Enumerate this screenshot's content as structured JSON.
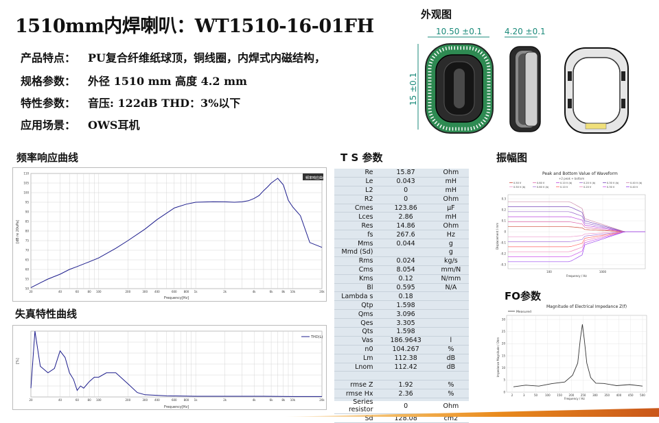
{
  "title": "1510mm内焊喇叭：WT1510-16-01FH",
  "specs": [
    {
      "key": "产品特点：",
      "value": "PU复合纤维纸球顶，铜线圈，内焊式内磁结构，"
    },
    {
      "key": "规格参数：",
      "value": "外径 1510 mm   高度 4.2 mm"
    },
    {
      "key": "特性参数：",
      "value": "音压: 122dB   THD：3%以下"
    },
    {
      "key": "应用场景：",
      "value": "OWS耳机"
    }
  ],
  "sections": {
    "appearance": "外观图",
    "freq_response": "频率响应曲线",
    "ts_params": "T S 参数",
    "amplitude": "振幅图",
    "distortion": "失真特性曲线",
    "fo_params": "FO参数"
  },
  "drawing": {
    "dim_width": "10.50 ±0.1",
    "dim_height": "15 ±0.1",
    "dim_depth": "4.20 ±0.1"
  },
  "freq_chart": {
    "legend": "频率响应曲线",
    "ylabel": "[dB re 20uPa]",
    "xlabel": "Frequency[Hz]",
    "y_ticks": [
      "110",
      "105",
      "100",
      "95",
      "90",
      "85",
      "80",
      "75",
      "70",
      "65",
      "60",
      "55",
      "50"
    ],
    "x_ticks": [
      "20",
      "40",
      "60",
      "80",
      "100",
      "200",
      "300",
      "400",
      "600",
      "800",
      "1k",
      "2k",
      "4k",
      "6k",
      "8k",
      "10k",
      "20k"
    ]
  },
  "dist_chart": {
    "legend": "THD(L)",
    "ylabel": "[%]",
    "xlabel": "Frequency[Hz]",
    "x_ticks": [
      "20",
      "40",
      "60",
      "80",
      "100",
      "200",
      "300",
      "400",
      "600",
      "800",
      "1k",
      "2k",
      "4k",
      "6k",
      "8k",
      "10k",
      "20k"
    ]
  },
  "amp_chart": {
    "title": "Peak and Bottom Value of Waveform",
    "subtitle": "+2 peak + bottom",
    "legend": [
      "0.50 V",
      "0.60 V",
      "0.10 V (b)",
      "0.20 V (b)",
      "0.30 V (b)",
      "0.40 V (b)",
      "0.50 V (b)",
      "0.60 V (b)",
      "0.10 V",
      "0.20 V",
      "0.30 V",
      "0.40 V"
    ],
    "ylabel": "Displacement / mm",
    "xlabel": "Frequency / Hz",
    "y_ticks": [
      "0.3",
      "0.2",
      "0.1",
      "0",
      "-0.1",
      "-0.2",
      "-0.3"
    ],
    "x_ticks": [
      "100",
      "1000"
    ]
  },
  "fo_chart": {
    "title": "Magnitude of Electrical Impedance Z(f)",
    "legend": "Measured",
    "ylabel": "Impedance Magnitude / Ohm",
    "xlabel": "Frequency / Hz",
    "y_ticks": [
      "30",
      "25",
      "20",
      "15",
      "10",
      "5",
      "0"
    ],
    "x_ticks": [
      "2",
      "3",
      "50",
      "100",
      "150",
      "200",
      "250",
      "300",
      "350",
      "400",
      "450",
      "500"
    ]
  },
  "ts_table": [
    [
      "Re",
      "15.87",
      "Ohm"
    ],
    [
      "Le",
      "0.043",
      "mH"
    ],
    [
      "L2",
      "0",
      "mH"
    ],
    [
      "R2",
      "0",
      "Ohm"
    ],
    [
      "Cmes",
      "123.86",
      "µF"
    ],
    [
      "Lces",
      "2.86",
      "mH"
    ],
    [
      "Res",
      "14.86",
      "Ohm"
    ],
    [
      "fs",
      "267.6",
      "Hz"
    ],
    [
      "Mms",
      "0.044",
      "g"
    ],
    [
      "Mmd (Sd)",
      "",
      "g"
    ],
    [
      "Rms",
      "0.024",
      "kg/s"
    ],
    [
      "Cms",
      "8.054",
      "mm/N"
    ],
    [
      "Kms",
      "0.12",
      "N/mm"
    ],
    [
      "Bl",
      "0.595",
      "N/A"
    ],
    [
      "Lambda s",
      "0.18",
      ""
    ],
    [
      "Qtp",
      "1.598",
      ""
    ],
    [
      "Qms",
      "3.096",
      ""
    ],
    [
      "Qes",
      "3.305",
      ""
    ],
    [
      "Qts",
      "1.598",
      ""
    ],
    [
      "Vas",
      "186.9643",
      "l"
    ],
    [
      "n0",
      "104.267",
      "%"
    ],
    [
      "Lm",
      "112.38",
      "dB"
    ],
    [
      "Lnom",
      "112.42",
      "dB"
    ],
    [
      "",
      "",
      ""
    ],
    [
      "rmse Z",
      "1.92",
      "%"
    ],
    [
      "rmse Hx",
      "2.36",
      "%"
    ],
    [
      "Series resistor",
      "0",
      "Ohm"
    ],
    [
      "Sd",
      "128.08",
      "cm2"
    ]
  ],
  "chart_data": [
    {
      "type": "line",
      "xlabel": "Frequency[Hz]",
      "ylabel": "[dB re 20uPa]",
      "ylim": [
        50,
        110
      ],
      "x": [
        20,
        25,
        30,
        40,
        50,
        60,
        80,
        100,
        150,
        200,
        300,
        400,
        600,
        800,
        1000,
        1500,
        2000,
        2500,
        3000,
        3500,
        4000,
        4500,
        5000,
        5500,
        6000,
        7000,
        8000,
        9000,
        10000,
        12000,
        15000,
        20000
      ],
      "series": [
        {
          "name": "频率响应曲线",
          "values": [
            50.5,
            53,
            55,
            57.5,
            60,
            61.5,
            64,
            66,
            71,
            75,
            81,
            86,
            92,
            94,
            95,
            95.3,
            95.2,
            95,
            95.2,
            95.8,
            97,
            98.5,
            101,
            103,
            105,
            107.5,
            104,
            96,
            92.5,
            88,
            74,
            71.5
          ]
        }
      ]
    },
    {
      "type": "line",
      "xlabel": "Frequency[Hz]",
      "ylabel": "[%]",
      "ylim": [
        0,
        30
      ],
      "x": [
        20,
        22,
        25,
        30,
        35,
        40,
        45,
        50,
        55,
        60,
        65,
        70,
        80,
        90,
        100,
        120,
        150,
        200,
        250,
        300,
        500,
        1000,
        2000,
        5000,
        10000,
        20000
      ],
      "series": [
        {
          "name": "THD(L)",
          "values": [
            4,
            30,
            14,
            11,
            13,
            21,
            18,
            11,
            8,
            3,
            5,
            4,
            7,
            9,
            9,
            11,
            11,
            6,
            2,
            1,
            0.5,
            0.3,
            0.3,
            0.3,
            0.2,
            0.2
          ]
        }
      ]
    },
    {
      "type": "line",
      "title": "Magnitude of Electrical Impedance Z(f)",
      "xlabel": "Frequency / Hz",
      "ylabel": "Impedance Magnitude / Ohm",
      "ylim": [
        0,
        30
      ],
      "x": [
        2,
        50,
        100,
        150,
        200,
        230,
        250,
        260,
        268,
        275,
        285,
        300,
        320,
        350,
        400,
        450,
        500
      ],
      "series": [
        {
          "name": "Measured",
          "values": [
            2.5,
            2.6,
            2.8,
            3.2,
            4.5,
            7,
            12,
            22,
            28,
            22,
            12,
            6,
            4,
            3.3,
            3,
            2.8,
            2.8
          ]
        }
      ]
    }
  ]
}
